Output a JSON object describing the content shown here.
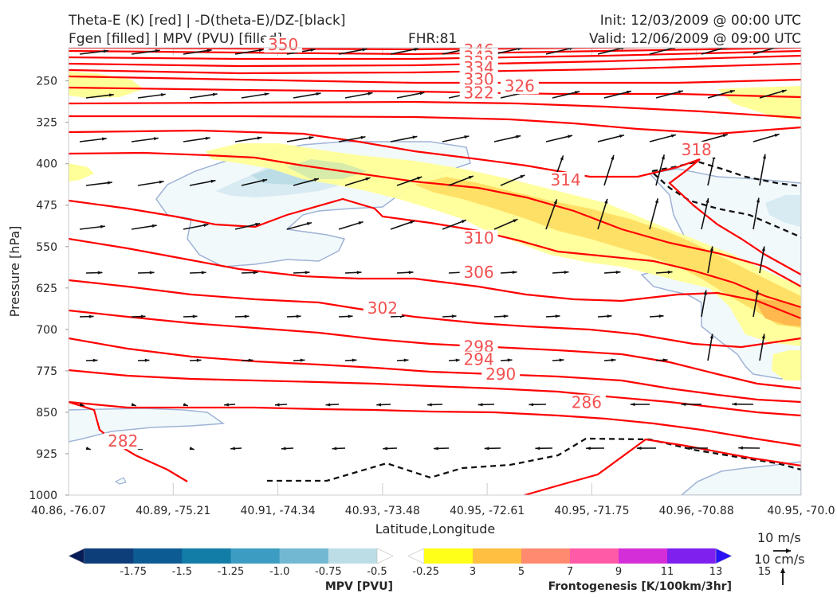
{
  "header": {
    "title_left_1": "Theta-E (K) [red] | -D(theta-E)/DZ-[black]",
    "title_left_2": "Fgen [filled] | MPV (PVU) [filled]",
    "fhr": "FHR:81",
    "init": "Init: 12/03/2009 @ 00:00 UTC",
    "valid": "Valid: 12/06/2009 @ 09:00 UTC"
  },
  "chart_data": {
    "type": "cross-section",
    "xlabel": "Latitude,Longitude",
    "ylabel": "Pressure [hPa]",
    "x_ticks": [
      "40.86, -76.07",
      "40.89, -75.21",
      "40.91, -74.34",
      "40.93, -73.48",
      "40.95, -72.61",
      "40.95, -71.75",
      "40.96, -70.88",
      "40.95, -70.0"
    ],
    "y_ticks": [
      250,
      325,
      400,
      475,
      550,
      625,
      700,
      775,
      850,
      925,
      1000
    ],
    "ylim": [
      1000,
      190
    ],
    "xlim": [
      0,
      7
    ],
    "grid": true,
    "theta_e_color": "#ff0000",
    "theta_e_labels": [
      {
        "text": "350",
        "x": 2.05,
        "p": 190
      },
      {
        "text": "346",
        "x": 3.92,
        "p": 200
      },
      {
        "text": "342",
        "x": 3.92,
        "p": 212
      },
      {
        "text": "338",
        "x": 3.92,
        "p": 222
      },
      {
        "text": "334",
        "x": 3.92,
        "p": 232
      },
      {
        "text": "330",
        "x": 3.92,
        "p": 253
      },
      {
        "text": "326",
        "x": 4.31,
        "p": 265
      },
      {
        "text": "322",
        "x": 3.92,
        "p": 277
      },
      {
        "text": "318",
        "x": 6.0,
        "p": 380
      },
      {
        "text": "314",
        "x": 4.75,
        "p": 435
      },
      {
        "text": "310",
        "x": 3.92,
        "p": 540
      },
      {
        "text": "306",
        "x": 3.92,
        "p": 602
      },
      {
        "text": "302",
        "x": 3.0,
        "p": 667
      },
      {
        "text": "298",
        "x": 3.92,
        "p": 737
      },
      {
        "text": "294",
        "x": 3.92,
        "p": 760
      },
      {
        "text": "290",
        "x": 4.13,
        "p": 787
      },
      {
        "text": "286",
        "x": 4.95,
        "p": 838
      },
      {
        "text": "282",
        "x": 0.52,
        "p": 908
      }
    ],
    "colorbars": [
      {
        "label": "MPV [PVU]",
        "ticks": [
          "-1.75",
          "-1.5",
          "-1.25",
          "-1.0",
          "-0.75",
          "-0.5",
          "-0.25"
        ],
        "colors": [
          "#081d58",
          "#0d3e7a",
          "#0c5c93",
          "#127ea8",
          "#3d9cc2",
          "#73b8d2",
          "#bcdde6",
          "#ffffff"
        ]
      },
      {
        "label": "Frontogenesis [K/100km/3hr]",
        "ticks": [
          "3",
          "5",
          "7",
          "9",
          "11",
          "13",
          "15"
        ],
        "colors": [
          "#ffffff",
          "#ffff1a",
          "#ffbf40",
          "#ff8a70",
          "#ff5aa8",
          "#d42ed8",
          "#7f20ee",
          "#2a12f5"
        ]
      }
    ],
    "vector_key": {
      "label_1": "10 m/s",
      "label_2": "10 cm/s"
    }
  }
}
